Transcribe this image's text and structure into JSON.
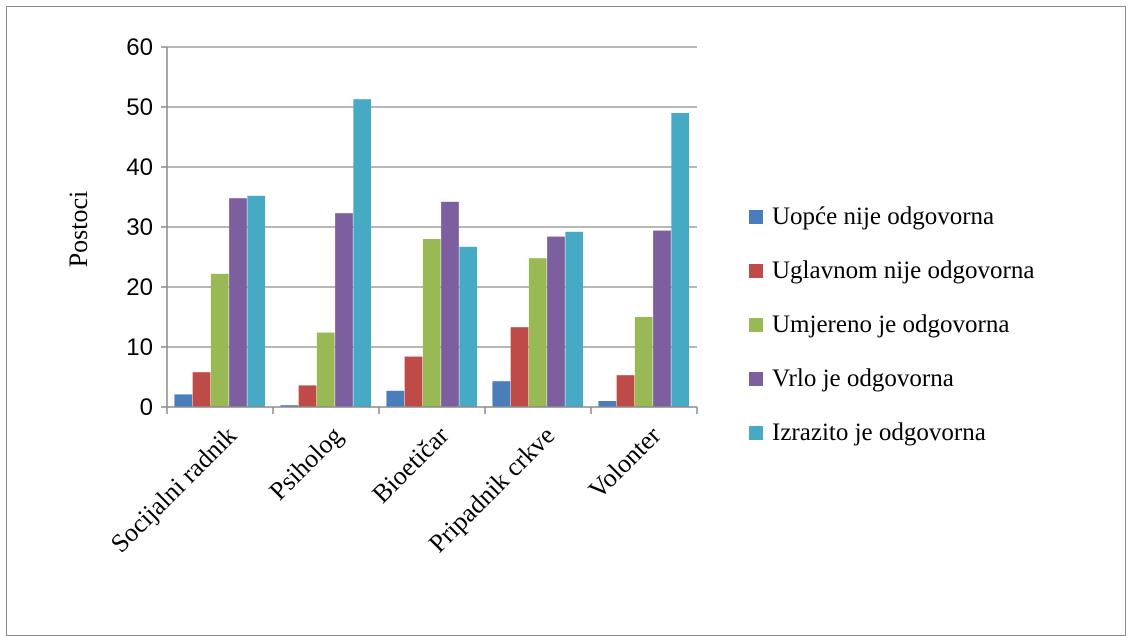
{
  "chart_data": {
    "type": "bar",
    "ylabel": "Postoci",
    "xlabel": "",
    "ylim": [
      0,
      60
    ],
    "yticks": [
      0,
      10,
      20,
      30,
      40,
      50,
      60
    ],
    "grid": true,
    "legend_position": "right",
    "categories": [
      "Socijalni radnik",
      "Psiholog",
      "Bioetičar",
      "Pripadnik crkve",
      "Volonter"
    ],
    "series": [
      {
        "name": "Uopće nije odgovorna",
        "color": "#4a7ebb",
        "values": [
          2.1,
          0.3,
          2.7,
          4.3,
          1.0
        ]
      },
      {
        "name": "Uglavnom nije odgovorna",
        "color": "#be4b48",
        "values": [
          5.8,
          3.6,
          8.4,
          13.3,
          5.3
        ]
      },
      {
        "name": "Umjereno je odgovorna",
        "color": "#98b954",
        "values": [
          22.2,
          12.4,
          28.0,
          24.8,
          15.0
        ]
      },
      {
        "name": "Vrlo je odgovorna",
        "color": "#7d5fa0",
        "values": [
          34.8,
          32.3,
          34.2,
          28.4,
          29.4
        ]
      },
      {
        "name": "Izrazito je odgovorna",
        "color": "#46aac5",
        "values": [
          35.2,
          51.3,
          26.7,
          29.2,
          49.0
        ]
      }
    ]
  }
}
